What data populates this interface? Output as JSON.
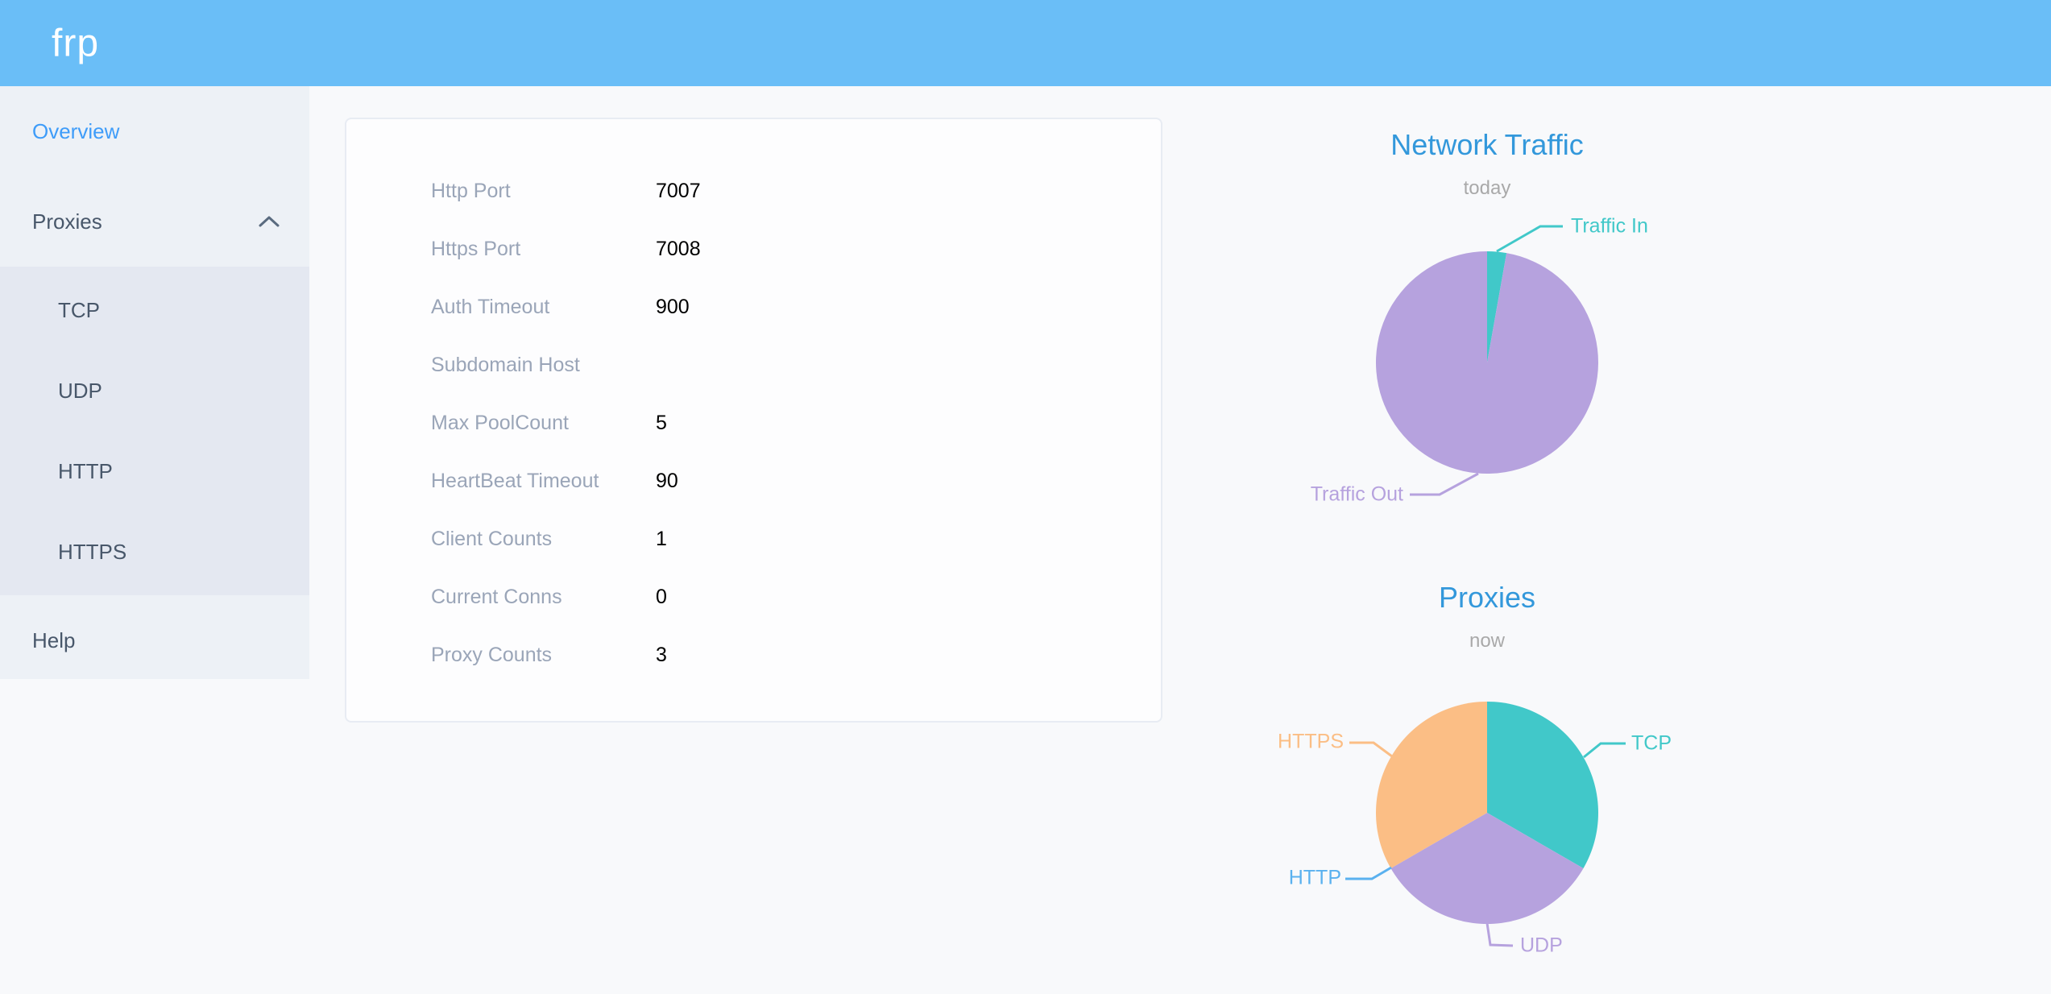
{
  "header": {
    "logo": "frp",
    "background": "#6abef7"
  },
  "sidebar": {
    "items": [
      {
        "label": "Overview",
        "active": true
      },
      {
        "label": "Proxies",
        "expanded": true
      },
      {
        "label": "Help",
        "active": false
      }
    ],
    "proxies_submenu": [
      "TCP",
      "UDP",
      "HTTP",
      "HTTPS"
    ]
  },
  "overview": {
    "rows": [
      {
        "label": "Http Port",
        "value": "7007"
      },
      {
        "label": "Https Port",
        "value": "7008"
      },
      {
        "label": "Auth Timeout",
        "value": "900"
      },
      {
        "label": "Subdomain Host",
        "value": ""
      },
      {
        "label": "Max PoolCount",
        "value": "5"
      },
      {
        "label": "HeartBeat Timeout",
        "value": "90"
      },
      {
        "label": "Client Counts",
        "value": "1"
      },
      {
        "label": "Current Conns",
        "value": "0"
      },
      {
        "label": "Proxy Counts",
        "value": "3"
      }
    ]
  },
  "chart_data": [
    {
      "type": "pie",
      "title": "Network Traffic",
      "subtitle": "today",
      "values_note": "percent_estimated_from_pie_angles",
      "legend_position": "callout-labels",
      "slices": [
        {
          "name": "Traffic In",
          "value": 2.8,
          "color": "#41c8c9"
        },
        {
          "name": "Traffic Out",
          "value": 97.2,
          "color": "#b6a2de"
        }
      ]
    },
    {
      "type": "pie",
      "title": "Proxies",
      "subtitle": "now",
      "values_note": "proxy_counts_by_type",
      "legend_position": "callout-labels",
      "slices": [
        {
          "name": "TCP",
          "value": 1,
          "color": "#41c8c9"
        },
        {
          "name": "UDP",
          "value": 1,
          "color": "#b6a2de"
        },
        {
          "name": "HTTP",
          "value": 0,
          "color": "#5ab1ef"
        },
        {
          "name": "HTTPS",
          "value": 1,
          "color": "#fbbe85"
        }
      ]
    }
  ],
  "theme": {
    "header_blue": "#6abef7",
    "active_link_blue": "#3e9cf9",
    "chart_title_blue": "#3398db",
    "sidebar_bg": "#edf1f6",
    "submenu_bg": "#e4e8f1"
  }
}
